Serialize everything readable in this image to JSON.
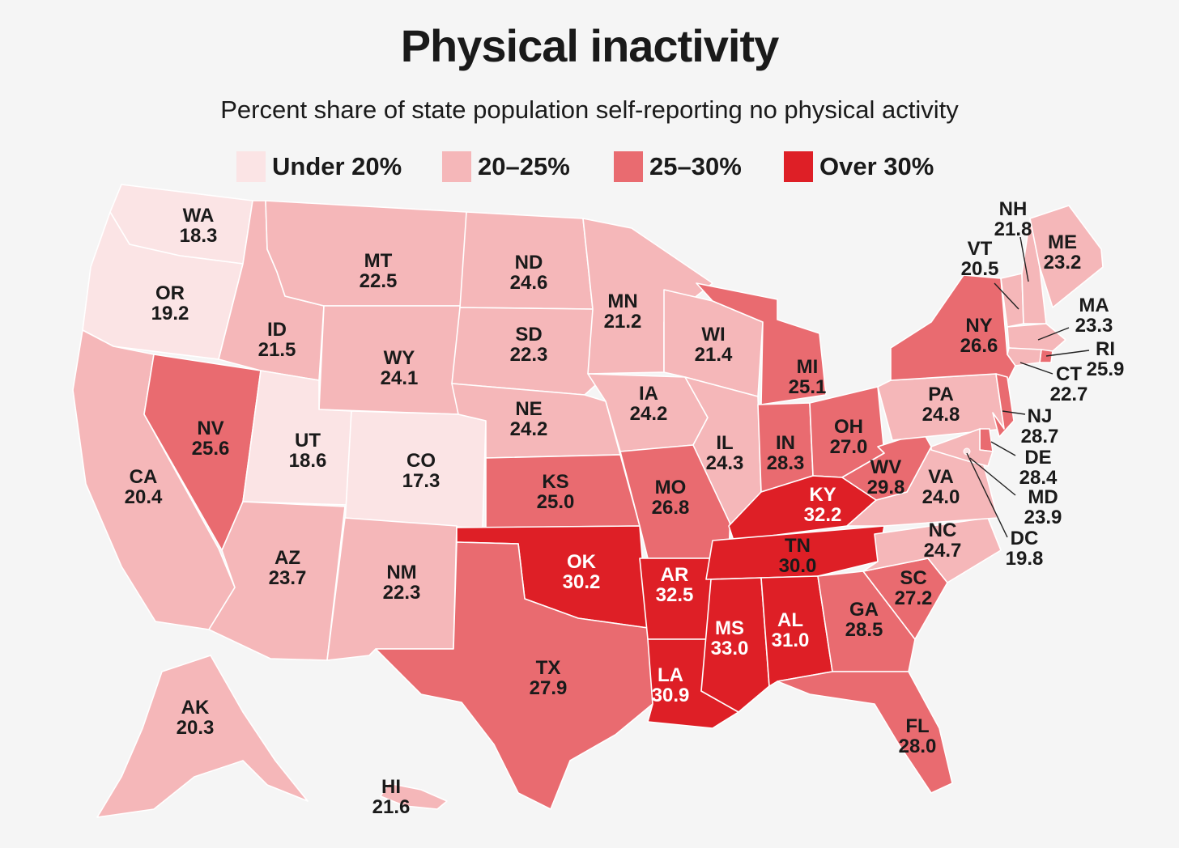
{
  "title": "Physical inactivity",
  "subtitle": "Percent share of state population self-reporting no physical activity",
  "legend": [
    {
      "label": "Under 20%",
      "color": "#fbe4e5"
    },
    {
      "label": "20–25%",
      "color": "#f5b7b9"
    },
    {
      "label": "25–30%",
      "color": "#e96b70"
    },
    {
      "label": "Over 30%",
      "color": "#de1f26"
    }
  ],
  "states": [
    {
      "abbr": "WA",
      "value": "18.3"
    },
    {
      "abbr": "OR",
      "value": "19.2"
    },
    {
      "abbr": "CA",
      "value": "20.4"
    },
    {
      "abbr": "NV",
      "value": "25.6"
    },
    {
      "abbr": "ID",
      "value": "21.5"
    },
    {
      "abbr": "MT",
      "value": "22.5"
    },
    {
      "abbr": "WY",
      "value": "24.1"
    },
    {
      "abbr": "UT",
      "value": "18.6"
    },
    {
      "abbr": "CO",
      "value": "17.3"
    },
    {
      "abbr": "AZ",
      "value": "23.7"
    },
    {
      "abbr": "NM",
      "value": "22.3"
    },
    {
      "abbr": "ND",
      "value": "24.6"
    },
    {
      "abbr": "SD",
      "value": "22.3"
    },
    {
      "abbr": "NE",
      "value": "24.2"
    },
    {
      "abbr": "KS",
      "value": "25.0"
    },
    {
      "abbr": "OK",
      "value": "30.2"
    },
    {
      "abbr": "TX",
      "value": "27.9"
    },
    {
      "abbr": "MN",
      "value": "21.2"
    },
    {
      "abbr": "IA",
      "value": "24.2"
    },
    {
      "abbr": "MO",
      "value": "26.8"
    },
    {
      "abbr": "AR",
      "value": "32.5"
    },
    {
      "abbr": "LA",
      "value": "30.9"
    },
    {
      "abbr": "WI",
      "value": "21.4"
    },
    {
      "abbr": "IL",
      "value": "24.3"
    },
    {
      "abbr": "MI",
      "value": "25.1"
    },
    {
      "abbr": "IN",
      "value": "28.3"
    },
    {
      "abbr": "OH",
      "value": "27.0"
    },
    {
      "abbr": "KY",
      "value": "32.2"
    },
    {
      "abbr": "TN",
      "value": "30.0"
    },
    {
      "abbr": "MS",
      "value": "33.0"
    },
    {
      "abbr": "AL",
      "value": "31.0"
    },
    {
      "abbr": "GA",
      "value": "28.5"
    },
    {
      "abbr": "FL",
      "value": "28.0"
    },
    {
      "abbr": "SC",
      "value": "27.2"
    },
    {
      "abbr": "NC",
      "value": "24.7"
    },
    {
      "abbr": "VA",
      "value": "24.0"
    },
    {
      "abbr": "WV",
      "value": "29.8"
    },
    {
      "abbr": "PA",
      "value": "24.8"
    },
    {
      "abbr": "NY",
      "value": "26.6"
    },
    {
      "abbr": "VT",
      "value": "20.5"
    },
    {
      "abbr": "NH",
      "value": "21.8"
    },
    {
      "abbr": "ME",
      "value": "23.2"
    },
    {
      "abbr": "MA",
      "value": "23.3"
    },
    {
      "abbr": "RI",
      "value": "25.9"
    },
    {
      "abbr": "CT",
      "value": "22.7"
    },
    {
      "abbr": "NJ",
      "value": "28.7"
    },
    {
      "abbr": "DE",
      "value": "28.4"
    },
    {
      "abbr": "MD",
      "value": "23.9"
    },
    {
      "abbr": "DC",
      "value": "19.8"
    },
    {
      "abbr": "AK",
      "value": "20.3"
    },
    {
      "abbr": "HI",
      "value": "21.6"
    }
  ]
}
